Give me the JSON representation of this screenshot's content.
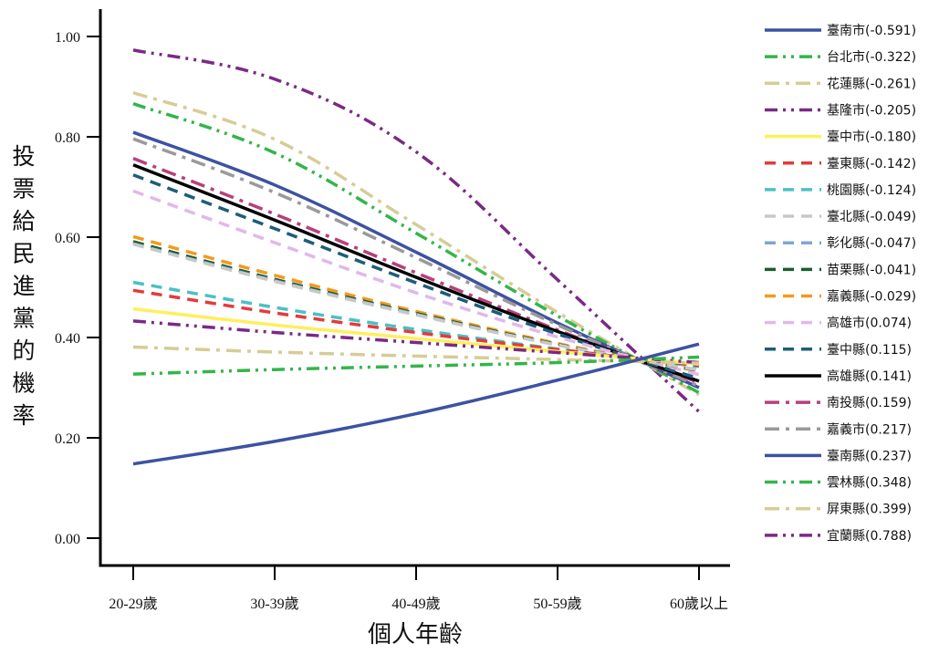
{
  "chart_data": {
    "type": "line",
    "title": "",
    "xlabel": "個人年齡",
    "ylabel": "投票給民進黨的機率",
    "categories": [
      "20-29歲",
      "30-39歲",
      "40-49歲",
      "50-59歲",
      "60歲以上"
    ],
    "ylim": [
      0,
      1.0
    ],
    "yticks": [
      "0.00",
      "0.20",
      "0.40",
      "0.60",
      "0.80",
      "1.00"
    ],
    "grid": false,
    "legend_position": "right",
    "series": [
      {
        "name": "臺南市(-0.591)",
        "color": "#3d52a1",
        "dash": "solid",
        "values": [
          0.148,
          0.193,
          0.248,
          0.315,
          0.387
        ]
      },
      {
        "name": "台北市(-0.322)",
        "color": "#33b54a",
        "dash": "dashdotdot",
        "values": [
          0.327,
          0.336,
          0.343,
          0.35,
          0.361
        ]
      },
      {
        "name": "花蓮縣(-0.261)",
        "color": "#d6cc96",
        "dash": "dashdot",
        "values": [
          0.381,
          0.371,
          0.363,
          0.356,
          0.349
        ]
      },
      {
        "name": "基隆市(-0.205)",
        "color": "#7a2a86",
        "dash": "dashdotdot",
        "values": [
          0.433,
          0.41,
          0.39,
          0.37,
          0.35
        ]
      },
      {
        "name": "臺中市(-0.180)",
        "color": "#ffef5c",
        "dash": "solid",
        "values": [
          0.457,
          0.425,
          0.398,
          0.372,
          0.347
        ]
      },
      {
        "name": "臺東縣(-0.142)",
        "color": "#e33b3b",
        "dash": "dashed",
        "values": [
          0.494,
          0.449,
          0.41,
          0.376,
          0.344
        ]
      },
      {
        "name": "桃園縣(-0.124)",
        "color": "#49c1c6",
        "dash": "dashed",
        "values": [
          0.51,
          0.46,
          0.416,
          0.377,
          0.342
        ]
      },
      {
        "name": "臺北縣(-0.049)",
        "color": "#c8c8c8",
        "dash": "dashed",
        "values": [
          0.586,
          0.512,
          0.445,
          0.385,
          0.335
        ]
      },
      {
        "name": "彰化縣(-0.047)",
        "color": "#7ea6d4",
        "dash": "dashed",
        "values": [
          0.587,
          0.513,
          0.446,
          0.385,
          0.335
        ]
      },
      {
        "name": "苗栗縣(-0.041)",
        "color": "#1a5e2e",
        "dash": "dashed",
        "values": [
          0.591,
          0.516,
          0.448,
          0.386,
          0.334
        ]
      },
      {
        "name": "嘉義縣(-0.029)",
        "color": "#f39a1e",
        "dash": "dashed",
        "values": [
          0.601,
          0.524,
          0.452,
          0.388,
          0.333
        ]
      },
      {
        "name": "高雄市(0.074)",
        "color": "#e2b7ec",
        "dash": "dashed",
        "values": [
          0.692,
          0.589,
          0.489,
          0.401,
          0.326
        ]
      },
      {
        "name": "臺中縣(0.115)",
        "color": "#1e5d78",
        "dash": "dashed",
        "values": [
          0.724,
          0.617,
          0.509,
          0.407,
          0.318
        ]
      },
      {
        "name": "高雄縣(0.141)",
        "color": "#000000",
        "dash": "solid",
        "values": [
          0.744,
          0.634,
          0.52,
          0.412,
          0.313
        ]
      },
      {
        "name": "南投縣(0.159)",
        "color": "#b8407a",
        "dash": "dashdot",
        "values": [
          0.757,
          0.646,
          0.529,
          0.415,
          0.31
        ]
      },
      {
        "name": "嘉義市(0.217)",
        "color": "#9a9a9a",
        "dash": "dashdot",
        "values": [
          0.796,
          0.689,
          0.559,
          0.425,
          0.303
        ]
      },
      {
        "name": "臺南縣(0.237)",
        "color": "#3d52a1",
        "dash": "solid",
        "values": [
          0.809,
          0.704,
          0.57,
          0.429,
          0.3
        ]
      },
      {
        "name": "雲林縣(0.348)",
        "color": "#33b54a",
        "dash": "dashdotdot",
        "values": [
          0.866,
          0.768,
          0.608,
          0.443,
          0.29
        ]
      },
      {
        "name": "屏東縣(0.399)",
        "color": "#d6cc96",
        "dash": "dashdot",
        "values": [
          0.888,
          0.795,
          0.625,
          0.45,
          0.286
        ]
      },
      {
        "name": "宜蘭縣(0.788)",
        "color": "#7a2a86",
        "dash": "dashdotdot",
        "values": [
          0.973,
          0.915,
          0.77,
          0.515,
          0.252
        ]
      }
    ]
  }
}
